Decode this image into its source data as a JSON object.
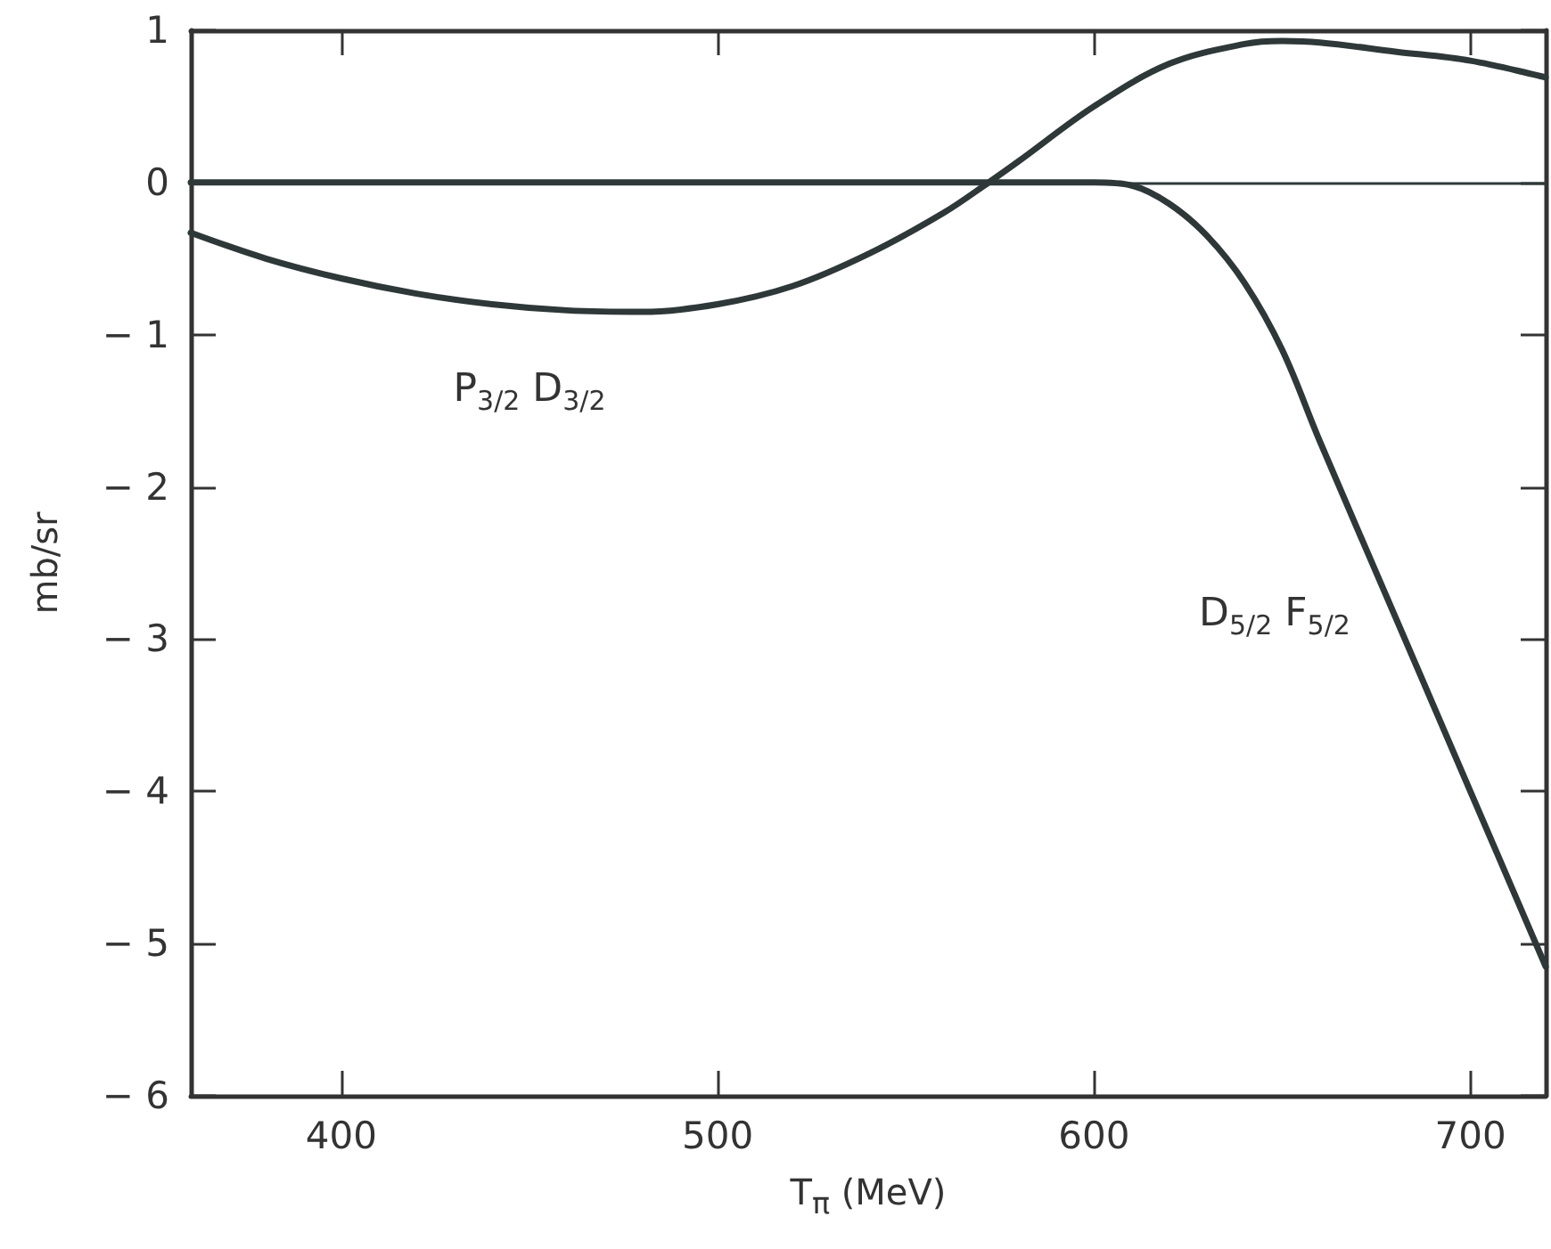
{
  "chart_data": {
    "type": "line",
    "xlabel": "T$_{π}$ (MeV)",
    "ylabel": "mb/sr",
    "xlim": [
      360,
      720
    ],
    "xticks": [
      400,
      500,
      600,
      700
    ],
    "ylim": [
      -6,
      1
    ],
    "yticks": [
      -6,
      -5,
      -4,
      -3,
      -2,
      -1,
      0,
      1
    ],
    "grid": false,
    "marker": "none",
    "line_style": "solid",
    "series": [
      {
        "color": "#2f3838",
        "x": [
          360,
          380,
          400,
          420,
          440,
          460,
          480,
          500,
          520,
          540,
          560,
          572,
          580,
          600,
          620,
          640,
          650,
          660,
          680,
          700,
          720
        ],
        "values": [
          -0.33,
          -0.5,
          -0.63,
          -0.73,
          -0.8,
          -0.84,
          -0.85,
          -0.8,
          -0.68,
          -0.47,
          -0.2,
          0,
          0.14,
          0.5,
          0.78,
          0.91,
          0.93,
          0.92,
          0.86,
          0.8,
          0.69
        ]
      },
      {
        "color": "#2f3838",
        "x": [
          360,
          400,
          450,
          500,
          550,
          600,
          610,
          620,
          630,
          640,
          650,
          660,
          680,
          700,
          720
        ],
        "values": [
          0,
          0,
          0,
          0,
          0,
          0,
          -0.02,
          -0.14,
          -0.35,
          -0.66,
          -1.1,
          -1.7,
          -2.85,
          -4.0,
          -5.15
        ]
      }
    ],
    "ref_lines": [
      {
        "axis": "y",
        "value": 0,
        "color": "#2f3838"
      }
    ],
    "annotations": [
      "P$_{3/2}$ D$_{3/2}$",
      "D$_{5/2}$ F$_{5/2}$"
    ]
  }
}
